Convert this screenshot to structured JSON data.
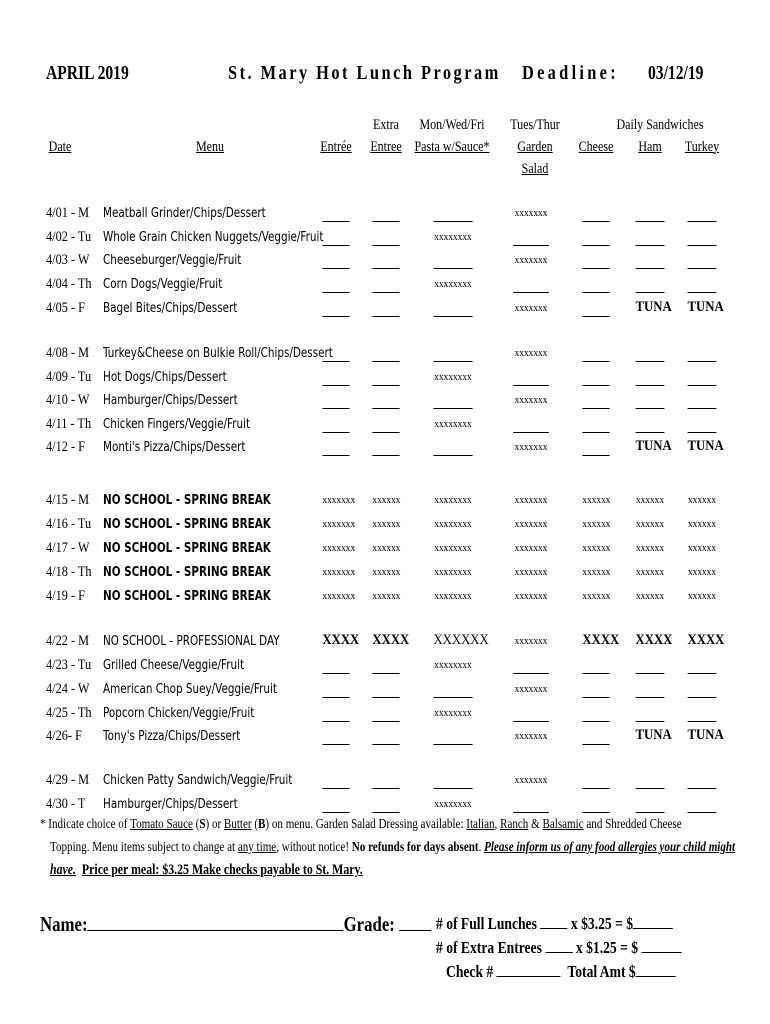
{
  "header": {
    "month": "APRIL 2019",
    "title": "St. Mary Hot Lunch Program",
    "deadline_label": "Deadline:",
    "deadline": "03/12/19"
  },
  "columns": {
    "date": "Date",
    "menu": "Menu",
    "entree": "Entrée",
    "extra1": "Extra",
    "extra2": "Entree",
    "pasta1": "Mon/Wed/Fri",
    "pasta2": "Pasta w/Sauce*",
    "salad1": "Tues/Thur",
    "salad2": "Garden",
    "salad3": "Salad",
    "sandwiches": "Daily Sandwiches",
    "cheese": "Cheese",
    "ham": "Ham",
    "turkey": "Turkey"
  },
  "rows": [
    {
      "date": "4/01 - M",
      "menu": "Meatball Grinder/Chips/Dessert",
      "cells": [
        "",
        "",
        "",
        "xxxxxxx",
        "",
        "",
        ""
      ]
    },
    {
      "date": "4/02 - Tu",
      "menu": "Whole Grain Chicken Nuggets/Veggie/Fruit",
      "cells": [
        "",
        "",
        "xxxxxxxx",
        "",
        "",
        "",
        ""
      ]
    },
    {
      "date": "4/03 - W",
      "menu": "Cheeseburger/Veggie/Fruit",
      "cells": [
        "",
        "",
        "",
        "xxxxxxx",
        "",
        "",
        ""
      ]
    },
    {
      "date": "4/04 - Th",
      "menu": "Corn Dogs/Veggie/Fruit",
      "cells": [
        "",
        "",
        "xxxxxxxx",
        "",
        "",
        "",
        ""
      ]
    },
    {
      "date": "4/05 - F",
      "menu": "Bagel Bites/Chips/Dessert",
      "cells": [
        "",
        "",
        "",
        "xxxxxxx",
        "",
        "TUNA",
        "TUNA"
      ]
    },
    {
      "date": "4/08 - M",
      "menu": "Turkey&Cheese on Bulkie Roll/Chips/Dessert",
      "cells": [
        "",
        "",
        "",
        "xxxxxxx",
        "",
        "",
        ""
      ]
    },
    {
      "date": "4/09 - Tu",
      "menu": "Hot Dogs/Chips/Dessert",
      "cells": [
        "",
        "",
        "xxxxxxxx",
        "",
        "",
        "",
        ""
      ]
    },
    {
      "date": "4/10 - W",
      "menu": "Hamburger/Chips/Dessert",
      "cells": [
        "",
        "",
        "",
        "xxxxxxx",
        "",
        "",
        ""
      ]
    },
    {
      "date": "4/11 - Th",
      "menu": "Chicken Fingers/Veggie/Fruit",
      "cells": [
        "",
        "",
        "xxxxxxxx",
        "",
        "",
        "",
        ""
      ]
    },
    {
      "date": "4/12 - F",
      "menu": "Monti's Pizza/Chips/Dessert",
      "cells": [
        "",
        "",
        "",
        "xxxxxxx",
        "",
        "TUNA",
        "TUNA"
      ]
    },
    {
      "date": "4/15 - M",
      "menu": "NO SCHOOL - SPRING BREAK",
      "bold": true,
      "cells": [
        "xxxxxxx",
        "xxxxxx",
        "xxxxxxxx",
        "xxxxxxx",
        "xxxxxx",
        "xxxxxx",
        "xxxxxx"
      ]
    },
    {
      "date": "4/16 - Tu",
      "menu": "NO SCHOOL - SPRING BREAK",
      "bold": true,
      "cells": [
        "xxxxxxx",
        "xxxxxx",
        "xxxxxxxx",
        "xxxxxxx",
        "xxxxxx",
        "xxxxxx",
        "xxxxxx"
      ]
    },
    {
      "date": "4/17 - W",
      "menu": "NO SCHOOL - SPRING BREAK",
      "bold": true,
      "cells": [
        "xxxxxxx",
        "xxxxxx",
        "xxxxxxxx",
        "xxxxxxx",
        "xxxxxx",
        "xxxxxx",
        "xxxxxx"
      ]
    },
    {
      "date": "4/18 - Th",
      "menu": "NO SCHOOL - SPRING BREAK",
      "bold": true,
      "cells": [
        "xxxxxxx",
        "xxxxxx",
        "xxxxxxxx",
        "xxxxxxx",
        "xxxxxx",
        "xxxxxx",
        "xxxxxx"
      ]
    },
    {
      "date": "4/19 - F",
      "menu": "NO SCHOOL - SPRING BREAK",
      "bold": true,
      "cells": [
        "xxxxxxx",
        "xxxxxx",
        "xxxxxxxx",
        "xxxxxxx",
        "xxxxxx",
        "xxxxxx",
        "xxxxxx"
      ]
    },
    {
      "date": "4/22 - M",
      "menu": "NO SCHOOL - PROFESSIONAL DAY",
      "cells": [
        "XXXX",
        "XXXX",
        "XXXXXX",
        "xxxxxxx",
        "XXXX",
        "XXXX",
        "XXXX"
      ]
    },
    {
      "date": "4/23 - Tu",
      "menu": "Grilled Cheese/Veggie/Fruit",
      "cells": [
        "",
        "",
        "xxxxxxxx",
        "",
        "",
        "",
        ""
      ]
    },
    {
      "date": "4/24 - W",
      "menu": "American Chop Suey/Veggie/Fruit",
      "cells": [
        "",
        "",
        "",
        "xxxxxxx",
        "",
        "",
        ""
      ]
    },
    {
      "date": "4/25 - Th",
      "menu": "Popcorn Chicken/Veggie/Fruit",
      "cells": [
        "",
        "",
        "xxxxxxxx",
        "",
        "",
        "",
        ""
      ]
    },
    {
      "date": "4/26- F",
      "menu": "Tony's Pizza/Chips/Dessert",
      "cells": [
        "",
        "",
        "",
        "xxxxxxx",
        "",
        "TUNA",
        "TUNA"
      ]
    },
    {
      "date": "4/29 - M",
      "menu": "Chicken Patty Sandwich/Veggie/Fruit",
      "cells": [
        "",
        "",
        "",
        "xxxxxxx",
        "",
        "",
        ""
      ]
    },
    {
      "date": "4/30 - T",
      "menu": "Hamburger/Chips/Dessert",
      "cells": [
        "",
        "",
        "xxxxxxxx",
        "",
        "",
        "",
        ""
      ]
    }
  ],
  "notes": {
    "l1a": "* Indicate choice of ",
    "tomato": "Tomato Sauce",
    "l1b": " (",
    "s": "S",
    "l1c": ") or ",
    "butter": "Butter",
    "l1d": " (",
    "b": "B",
    "l1e": ") on menu. Garden Salad Dressing available: ",
    "italian": "Italian",
    "comma": ", ",
    "ranch": "Ranch",
    "amp": " & ",
    "balsamic": "Balsamic",
    "l1f": " and Shredded Cheese",
    "l2a": "Topping.  Menu items subject to change at ",
    "anytime": "any time",
    "l2b": ", without notice! ",
    "norefunds": "No refunds for days absent",
    "l2c": ". ",
    "allergy": "Please inform us of any food allergies your child might",
    "have": "have.",
    "price": "Price per meal: $3.25  Make checks payable to St. Mary."
  },
  "form": {
    "name": "Name:",
    "grade": "Grade:",
    "full": "# of  Full  Lunches",
    "full_price": "x  $3.25  =  $",
    "extra": "# of Extra Entrees",
    "extra_price": "x  $1.25  =  $",
    "check": "Check #",
    "total": "Total Amt $"
  }
}
